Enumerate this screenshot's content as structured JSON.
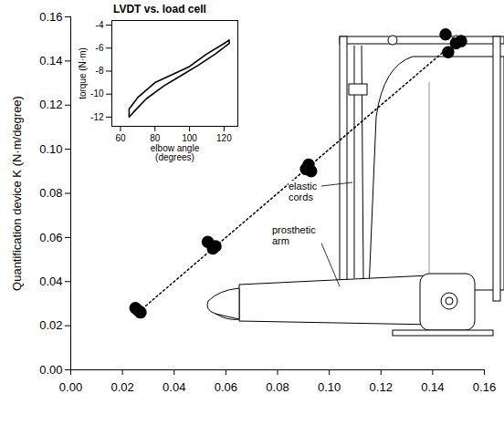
{
  "chart_data": [
    {
      "type": "scatter",
      "y_label": "Quantification device K (N·m/degree)",
      "x": [
        0.026,
        0.027,
        0.025,
        0.053,
        0.055,
        0.056,
        0.091,
        0.092,
        0.093,
        0.145,
        0.149,
        0.151,
        0.146
      ],
      "values": [
        0.027,
        0.026,
        0.028,
        0.058,
        0.055,
        0.056,
        0.091,
        0.093,
        0.09,
        0.152,
        0.148,
        0.149,
        0.144
      ],
      "color": "#000000",
      "marker": "circle",
      "reference_line": {
        "type": "line",
        "x": [
          0.025,
          0.15
        ],
        "values": [
          0.025,
          0.15
        ],
        "line_style": "dotted",
        "color": "#000000"
      },
      "xlim": [
        0,
        0.16
      ],
      "ylim": [
        0,
        0.16
      ],
      "xticks": [
        {
          "value": 0,
          "label": "0.00"
        },
        0.02,
        0.04,
        0.06,
        0.08,
        {
          "value": 0.1,
          "label": "0.10"
        },
        0.12,
        0.14,
        0.16
      ],
      "yticks": [
        {
          "value": 0,
          "label": "0.00"
        },
        0.02,
        0.04,
        0.06,
        0.08,
        {
          "value": 0.1,
          "label": "0.10"
        },
        0.12,
        0.14,
        0.16
      ],
      "annotations": [
        "elastic cords",
        "prosthetic arm"
      ]
    },
    {
      "type": "line",
      "title": "LVDT vs. load cell",
      "x_label": "elbow angle (degrees)",
      "y_label": "torque (N·m)",
      "x": [
        65,
        70,
        80,
        90,
        100,
        110,
        120,
        123,
        123,
        115,
        105,
        95,
        85,
        75,
        68,
        65,
        65
      ],
      "values": [
        -11.3,
        -10.3,
        -9.0,
        -8.3,
        -7.6,
        -6.5,
        -5.6,
        -5.3,
        -5.6,
        -6.5,
        -7.5,
        -8.4,
        -9.3,
        -10.4,
        -11.5,
        -12.0,
        -11.3
      ],
      "color": "#000000",
      "xlim": [
        55,
        128
      ],
      "ylim": [
        -12.8,
        -3.6
      ],
      "xticks": [
        60,
        80,
        100,
        120
      ],
      "yticks": [
        -12,
        -10,
        -8,
        -6,
        -4
      ]
    }
  ]
}
